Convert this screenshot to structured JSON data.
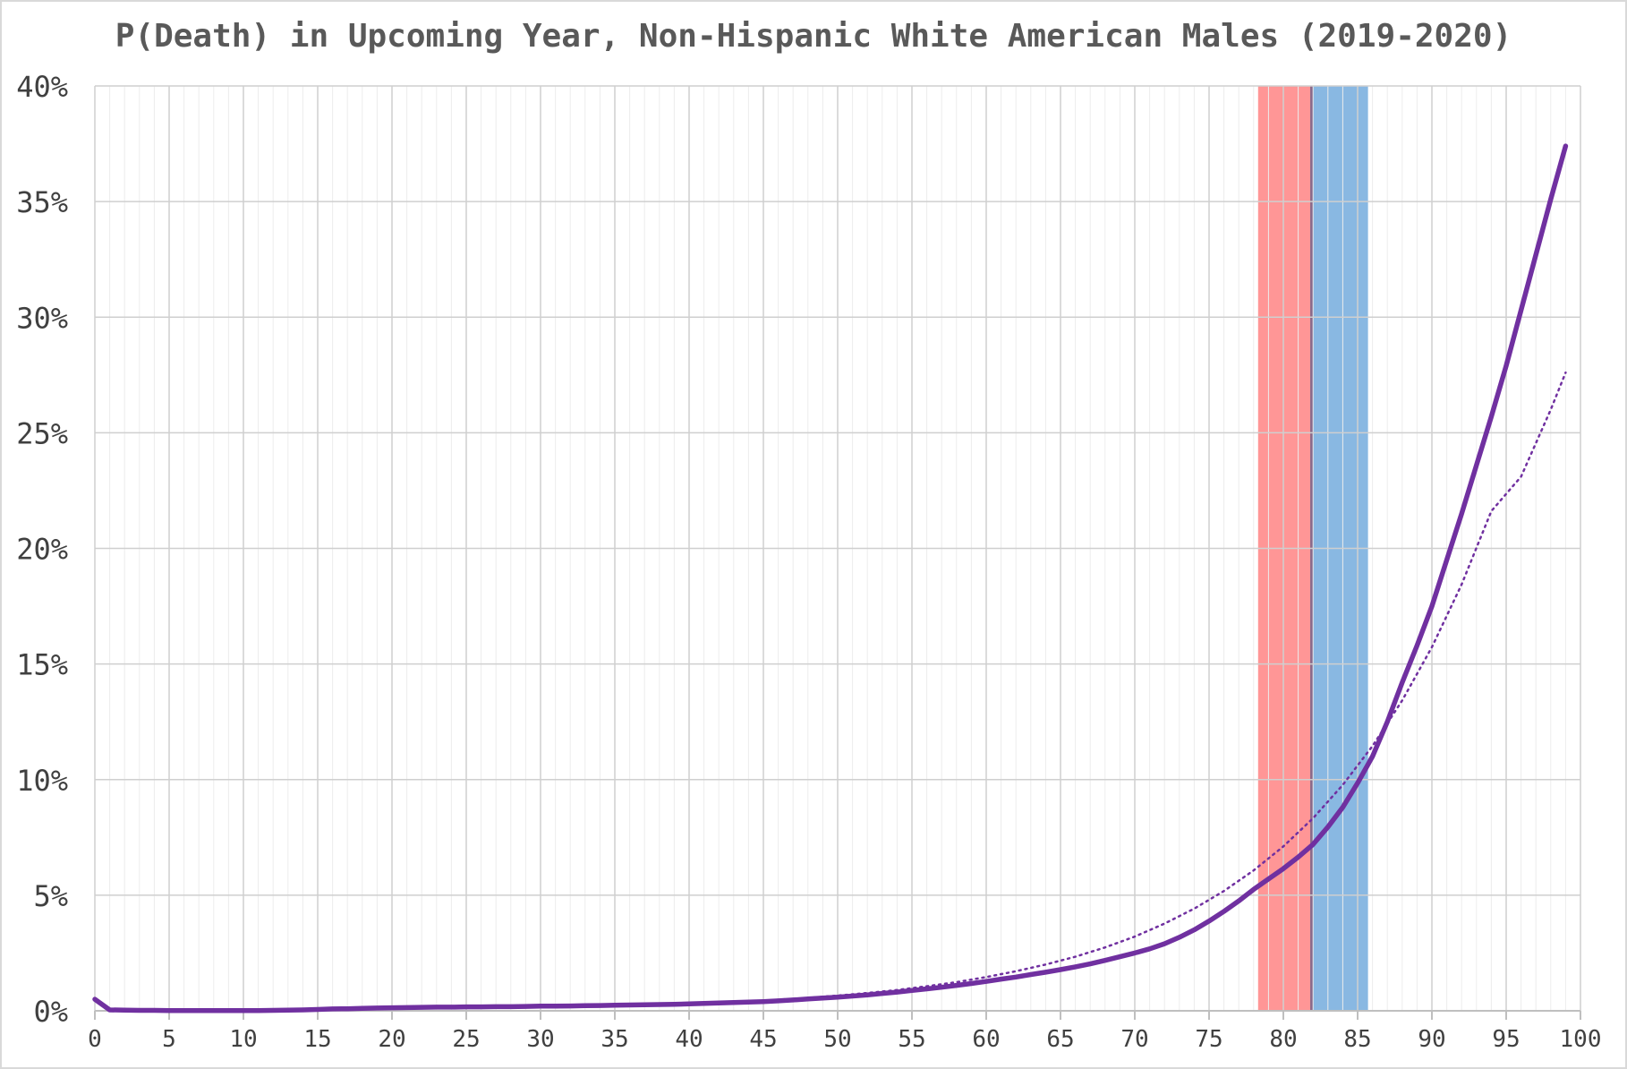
{
  "chart_data": {
    "type": "line",
    "title": "P(Death) in Upcoming Year, Non-Hispanic White American Males (2019-2020)",
    "xlabel": "",
    "ylabel": "",
    "xlim": [
      0,
      100
    ],
    "ylim": [
      0,
      0.4
    ],
    "x_ticks": [
      0,
      5,
      10,
      15,
      20,
      25,
      30,
      35,
      40,
      45,
      50,
      55,
      60,
      65,
      70,
      75,
      80,
      85,
      90,
      95,
      100
    ],
    "x_tick_labels": [
      "0",
      "5",
      "10",
      "15",
      "20",
      "25",
      "30",
      "35",
      "40",
      "45",
      "50",
      "55",
      "60",
      "65",
      "70",
      "75",
      "80",
      "85",
      "90",
      "95",
      "100"
    ],
    "y_ticks": [
      0,
      0.05,
      0.1,
      0.15,
      0.2,
      0.25,
      0.3,
      0.35,
      0.4
    ],
    "y_tick_labels": [
      "0%",
      "5%",
      "10%",
      "15%",
      "20%",
      "25%",
      "30%",
      "35%",
      "40%"
    ],
    "grid": {
      "major_x": true,
      "minor_x_step": 1,
      "major_y": true
    },
    "bands": [
      {
        "x_start": 78.3,
        "x_end": 81.9,
        "color": "#ff7f7f"
      },
      {
        "x_start": 81.9,
        "x_end": 85.7,
        "color": "#6fa8dc"
      }
    ],
    "series": [
      {
        "style": "solid",
        "color": "#7030a0",
        "x": [
          0,
          1,
          2,
          3,
          4,
          5,
          6,
          7,
          8,
          9,
          10,
          11,
          12,
          13,
          14,
          15,
          16,
          17,
          18,
          19,
          20,
          21,
          22,
          23,
          24,
          25,
          26,
          27,
          28,
          29,
          30,
          31,
          32,
          33,
          34,
          35,
          36,
          37,
          38,
          39,
          40,
          41,
          42,
          43,
          44,
          45,
          46,
          47,
          48,
          49,
          50,
          51,
          52,
          53,
          54,
          55,
          56,
          57,
          58,
          59,
          60,
          61,
          62,
          63,
          64,
          65,
          66,
          67,
          68,
          69,
          70,
          71,
          72,
          73,
          74,
          75,
          76,
          77,
          78,
          79,
          80,
          81,
          82,
          83,
          84,
          85,
          86,
          87,
          88,
          89,
          90,
          91,
          92,
          93,
          94,
          95,
          96,
          97,
          98,
          99
        ],
        "y": [
          0.005,
          0.0004,
          0.0003,
          0.0002,
          0.0002,
          0.0001,
          0.0001,
          0.0001,
          0.0001,
          0.0001,
          0.0001,
          0.0001,
          0.0002,
          0.0003,
          0.0004,
          0.0006,
          0.0008,
          0.0009,
          0.0011,
          0.0012,
          0.0013,
          0.0014,
          0.0015,
          0.0016,
          0.0016,
          0.0017,
          0.0017,
          0.0018,
          0.0018,
          0.0019,
          0.002,
          0.002,
          0.0021,
          0.0022,
          0.0023,
          0.0024,
          0.0025,
          0.0026,
          0.0027,
          0.0028,
          0.003,
          0.0032,
          0.0034,
          0.0036,
          0.0038,
          0.004,
          0.0043,
          0.0047,
          0.0051,
          0.0055,
          0.0059,
          0.0064,
          0.0069,
          0.0075,
          0.0081,
          0.0088,
          0.0095,
          0.0102,
          0.011,
          0.0118,
          0.0127,
          0.0137,
          0.0146,
          0.0157,
          0.0167,
          0.0178,
          0.019,
          0.0203,
          0.0218,
          0.0234,
          0.025,
          0.0268,
          0.029,
          0.0318,
          0.035,
          0.0388,
          0.043,
          0.0475,
          0.0525,
          0.057,
          0.0615,
          0.0665,
          0.072,
          0.0795,
          0.088,
          0.0985,
          0.11,
          0.125,
          0.142,
          0.158,
          0.175,
          0.195,
          0.215,
          0.236,
          0.257,
          0.279,
          0.303,
          0.327,
          0.351,
          0.374
        ]
      },
      {
        "style": "dotted",
        "color": "#7030a0",
        "x": [
          40,
          42,
          44,
          46,
          48,
          50,
          52,
          54,
          56,
          58,
          60,
          62,
          64,
          66,
          68,
          70,
          72,
          74,
          76,
          78,
          80,
          82,
          84,
          86,
          88,
          90,
          92,
          94,
          96,
          98,
          99
        ],
        "y": [
          0.003,
          0.0035,
          0.0041,
          0.0048,
          0.0056,
          0.0066,
          0.0077,
          0.009,
          0.0106,
          0.0124,
          0.0146,
          0.0171,
          0.02,
          0.0234,
          0.0274,
          0.0321,
          0.0377,
          0.0442,
          0.0518,
          0.0607,
          0.0711,
          0.0833,
          0.0977,
          0.1145,
          0.1342,
          0.1573,
          0.1844,
          0.2161,
          0.231,
          0.26,
          0.276
        ]
      }
    ]
  }
}
